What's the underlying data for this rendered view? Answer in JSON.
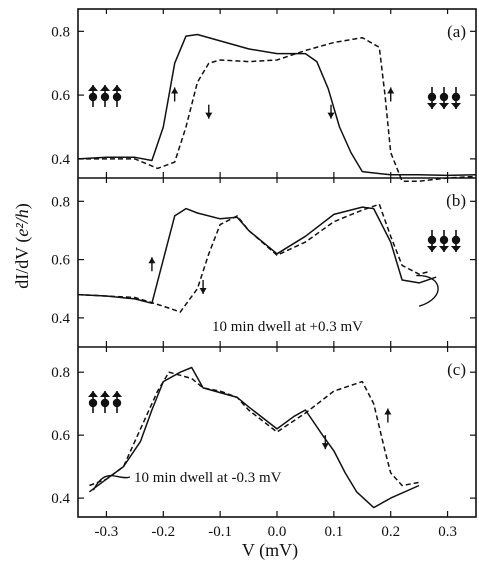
{
  "chart_data": {
    "type": "line",
    "xlabel": "V  (mV)",
    "ylabel": "dI/dV  (e²/h)",
    "ylabel_parts": {
      "base": "dI/dV  (",
      "italic": "e²/h",
      "close": ")"
    },
    "xlim": [
      -0.35,
      0.35
    ],
    "x_ticks": [
      -0.3,
      -0.2,
      -0.1,
      0.0,
      0.1,
      0.2,
      0.3
    ],
    "x_tick_labels": [
      "-0.3",
      "-0.2",
      "-0.1",
      "0.0",
      "0.1",
      "0.2",
      "0.3"
    ],
    "colors": {
      "line": "#111111",
      "frame": "#111111"
    },
    "panels": [
      {
        "tag": "(a)",
        "ylim": [
          0.34,
          0.87
        ],
        "y_ticks": [
          0.4,
          0.6,
          0.8
        ],
        "y_tick_labels": [
          "0.4",
          "0.6",
          "0.8"
        ],
        "spin_left": "up",
        "spin_right": "down",
        "series": [
          {
            "style": "solid",
            "x": [
              -0.35,
              -0.3,
              -0.25,
              -0.22,
              -0.2,
              -0.18,
              -0.16,
              -0.14,
              -0.1,
              -0.05,
              0.0,
              0.05,
              0.07,
              0.09,
              0.11,
              0.13,
              0.15,
              0.2,
              0.25,
              0.3,
              0.35
            ],
            "y": [
              0.4,
              0.405,
              0.405,
              0.395,
              0.5,
              0.7,
              0.785,
              0.79,
              0.77,
              0.745,
              0.73,
              0.73,
              0.705,
              0.62,
              0.5,
              0.42,
              0.36,
              0.35,
              0.35,
              0.348,
              0.35
            ]
          },
          {
            "style": "dashed",
            "x": [
              -0.35,
              -0.25,
              -0.21,
              -0.18,
              -0.16,
              -0.14,
              -0.12,
              -0.1,
              -0.05,
              0.0,
              0.05,
              0.1,
              0.15,
              0.18,
              0.19,
              0.2,
              0.22,
              0.25,
              0.3,
              0.35
            ],
            "y": [
              0.4,
              0.4,
              0.37,
              0.39,
              0.5,
              0.64,
              0.7,
              0.71,
              0.705,
              0.71,
              0.74,
              0.765,
              0.78,
              0.75,
              0.6,
              0.42,
              0.33,
              0.33,
              0.34,
              0.345
            ]
          }
        ]
      },
      {
        "tag": "(b)",
        "ylim": [
          0.3,
          0.88
        ],
        "y_ticks": [
          0.4,
          0.6,
          0.8
        ],
        "y_tick_labels": [
          "0.4",
          "0.6",
          "0.8"
        ],
        "spin_right": "down",
        "annotation": "10 min dwell at +0.3 mV",
        "series": [
          {
            "style": "solid",
            "x": [
              -0.35,
              -0.3,
              -0.25,
              -0.22,
              -0.2,
              -0.18,
              -0.16,
              -0.14,
              -0.1,
              -0.07,
              -0.05,
              0.0,
              0.05,
              0.1,
              0.15,
              0.17,
              0.2,
              0.22,
              0.25,
              0.28
            ],
            "y": [
              0.48,
              0.475,
              0.465,
              0.45,
              0.6,
              0.75,
              0.775,
              0.76,
              0.74,
              0.745,
              0.7,
              0.62,
              0.68,
              0.755,
              0.78,
              0.775,
              0.66,
              0.53,
              0.52,
              0.54
            ]
          },
          {
            "style": "dashed",
            "x": [
              -0.35,
              -0.25,
              -0.2,
              -0.17,
              -0.14,
              -0.12,
              -0.1,
              -0.07,
              -0.05,
              0.0,
              0.05,
              0.1,
              0.15,
              0.18,
              0.2,
              0.22,
              0.25,
              0.27
            ],
            "y": [
              0.48,
              0.47,
              0.44,
              0.42,
              0.5,
              0.62,
              0.72,
              0.75,
              0.7,
              0.615,
              0.66,
              0.73,
              0.77,
              0.79,
              0.68,
              0.58,
              0.55,
              0.56
            ]
          }
        ]
      },
      {
        "tag": "(c)",
        "ylim": [
          0.34,
          0.88
        ],
        "y_ticks": [
          0.4,
          0.6,
          0.8
        ],
        "y_tick_labels": [
          "0.4",
          "0.6",
          "0.8"
        ],
        "spin_left": "up",
        "annotation": "10 min dwell at -0.3 mV",
        "series": [
          {
            "style": "solid",
            "x": [
              -0.33,
              -0.3,
              -0.27,
              -0.24,
              -0.22,
              -0.2,
              -0.17,
              -0.15,
              -0.13,
              -0.1,
              -0.07,
              -0.05,
              0.0,
              0.03,
              0.05,
              0.08,
              0.1,
              0.12,
              0.14,
              0.17,
              0.2,
              0.25
            ],
            "y": [
              0.42,
              0.46,
              0.5,
              0.58,
              0.68,
              0.77,
              0.8,
              0.815,
              0.75,
              0.735,
              0.72,
              0.69,
              0.62,
              0.66,
              0.68,
              0.6,
              0.55,
              0.48,
              0.42,
              0.37,
              0.4,
              0.44
            ]
          },
          {
            "style": "dashed",
            "x": [
              -0.33,
              -0.3,
              -0.27,
              -0.24,
              -0.21,
              -0.19,
              -0.17,
              -0.15,
              -0.13,
              -0.1,
              -0.07,
              -0.05,
              0.0,
              0.05,
              0.1,
              0.15,
              0.17,
              0.19,
              0.2,
              0.22,
              0.25
            ],
            "y": [
              0.44,
              0.46,
              0.5,
              0.62,
              0.74,
              0.8,
              0.79,
              0.78,
              0.75,
              0.74,
              0.72,
              0.68,
              0.61,
              0.67,
              0.74,
              0.77,
              0.7,
              0.55,
              0.48,
              0.44,
              0.45
            ]
          }
        ]
      }
    ]
  }
}
